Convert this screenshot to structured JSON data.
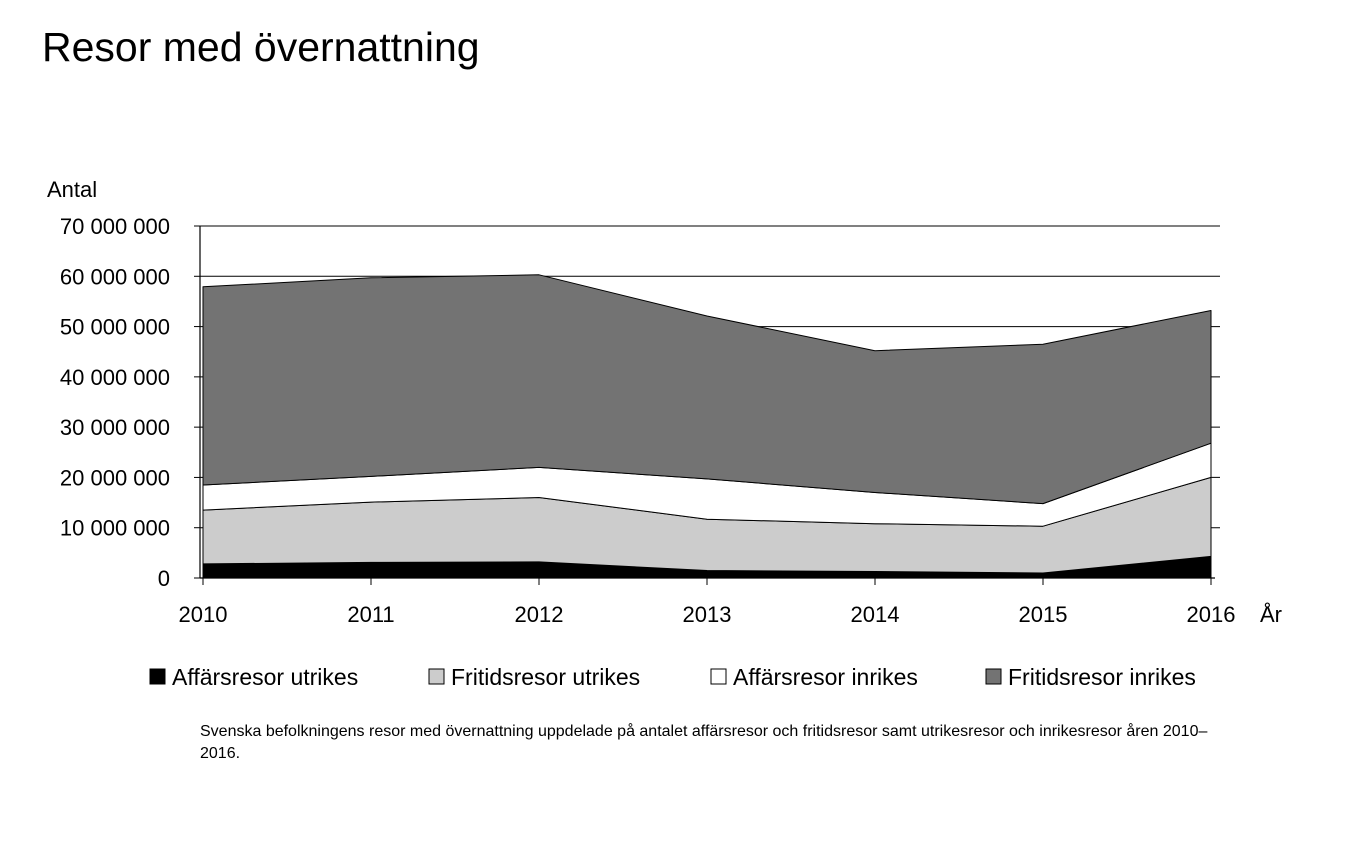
{
  "page_title": "Resor med övernattning",
  "caption": "Svenska befolkningens resor med övernattning uppdelade på antalet affärsresor och fritidsresor samt utrikesresor och inrikesresor åren 2010–2016.",
  "chart_data": {
    "type": "area",
    "stacked": true,
    "ylabel": "Antal",
    "xlabel": "År",
    "ylim": [
      0,
      70000000
    ],
    "yticks": [
      0,
      10000000,
      20000000,
      30000000,
      40000000,
      50000000,
      60000000,
      70000000
    ],
    "ytick_labels": [
      "0",
      "10 000 000",
      "20 000 000",
      "30 000 000",
      "40 000 000",
      "50 000 000",
      "60 000 000",
      "70 000 000"
    ],
    "categories": [
      "2010",
      "2011",
      "2012",
      "2013",
      "2014",
      "2015",
      "2016"
    ],
    "grid": true,
    "legend_position": "bottom",
    "series": [
      {
        "name": "Affärsresor utrikes",
        "color": "#000000",
        "values": [
          2800000,
          3100000,
          3200000,
          1500000,
          1300000,
          1000000,
          4300000
        ]
      },
      {
        "name": "Fritidsresor utrikes",
        "color": "#cccccc",
        "values": [
          10700000,
          12000000,
          12800000,
          10200000,
          9500000,
          9300000,
          15700000
        ]
      },
      {
        "name": "Affärsresor inrikes",
        "color": "#ffffff",
        "values": [
          5000000,
          5100000,
          6000000,
          8000000,
          6200000,
          4500000,
          6800000
        ]
      },
      {
        "name": "Fritidsresor inrikes",
        "color": "#737373",
        "values": [
          39400000,
          39500000,
          38300000,
          32400000,
          28200000,
          31700000,
          26400000
        ]
      }
    ]
  }
}
